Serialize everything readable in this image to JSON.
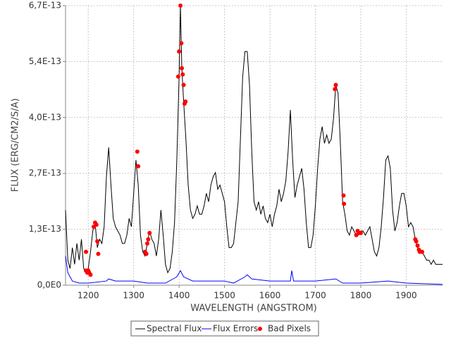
{
  "chart_data": {
    "type": "line",
    "x_label": "WAVELENGTH (ANGSTROM)",
    "y_label": "FLUX (ERG/CM2/S/A)",
    "xlim": [
      1150,
      1980
    ],
    "xticks": [
      1200,
      1300,
      1400,
      1500,
      1600,
      1700,
      1800,
      1900
    ],
    "ylim": [
      0,
      6.7e-13
    ],
    "yticks": [
      {
        "value": 0,
        "label": "0,0E0"
      },
      {
        "value": 1.34e-13,
        "label": "1,3E-13"
      },
      {
        "value": 2.68e-13,
        "label": "2,7E-13"
      },
      {
        "value": 4.02e-13,
        "label": "4,0E-13"
      },
      {
        "value": 5.36e-13,
        "label": "5,4E-13"
      },
      {
        "value": 6.7e-13,
        "label": "6,7E-13"
      }
    ],
    "grid": true,
    "legend": "bottom",
    "series": [
      {
        "name": "Spectral Flux",
        "type": "line",
        "color": "#000000",
        "x": [
          1150,
          1155,
          1160,
          1165,
          1170,
          1175,
          1180,
          1185,
          1190,
          1195,
          1200,
          1205,
          1210,
          1215,
          1220,
          1225,
          1230,
          1235,
          1240,
          1245,
          1250,
          1255,
          1260,
          1265,
          1270,
          1275,
          1280,
          1285,
          1290,
          1295,
          1300,
          1305,
          1310,
          1315,
          1320,
          1325,
          1330,
          1335,
          1340,
          1345,
          1350,
          1355,
          1360,
          1365,
          1370,
          1375,
          1380,
          1385,
          1390,
          1395,
          1400,
          1403,
          1406,
          1410,
          1415,
          1420,
          1425,
          1430,
          1435,
          1440,
          1445,
          1450,
          1455,
          1460,
          1465,
          1470,
          1475,
          1480,
          1485,
          1490,
          1495,
          1500,
          1505,
          1510,
          1515,
          1520,
          1525,
          1530,
          1535,
          1540,
          1545,
          1550,
          1555,
          1560,
          1565,
          1570,
          1575,
          1580,
          1585,
          1590,
          1595,
          1600,
          1605,
          1610,
          1615,
          1620,
          1625,
          1630,
          1635,
          1640,
          1645,
          1650,
          1655,
          1660,
          1665,
          1670,
          1675,
          1680,
          1685,
          1690,
          1695,
          1700,
          1705,
          1710,
          1715,
          1720,
          1725,
          1730,
          1735,
          1740,
          1745,
          1750,
          1755,
          1760,
          1765,
          1770,
          1775,
          1780,
          1785,
          1790,
          1795,
          1800,
          1805,
          1810,
          1815,
          1820,
          1825,
          1830,
          1835,
          1840,
          1845,
          1850,
          1855,
          1860,
          1865,
          1870,
          1875,
          1880,
          1885,
          1890,
          1895,
          1900,
          1905,
          1910,
          1915,
          1920,
          1925,
          1930,
          1935,
          1940,
          1945,
          1950,
          1955,
          1960,
          1965,
          1970,
          1975,
          1980
        ],
        "values": [
          1.8e-13,
          6e-14,
          4e-14,
          9e-14,
          5e-14,
          1e-13,
          6e-14,
          1.1e-13,
          4e-14,
          3e-14,
          4e-14,
          8e-14,
          1.3e-13,
          1.5e-13,
          9e-14,
          1.1e-13,
          1e-13,
          1.4e-13,
          2.6e-13,
          3.3e-13,
          2.4e-13,
          1.6e-13,
          1.4e-13,
          1.3e-13,
          1.2e-13,
          1e-13,
          1e-13,
          1.2e-13,
          1.6e-13,
          1.4e-13,
          2.2e-13,
          3e-13,
          2.4e-13,
          1.2e-13,
          8e-14,
          7e-14,
          1e-13,
          1.3e-13,
          1.1e-13,
          1e-13,
          7e-14,
          1.1e-13,
          1.8e-13,
          1.2e-13,
          5e-14,
          3e-14,
          4e-14,
          8e-14,
          1.5e-13,
          3e-13,
          5e-13,
          6.7e-13,
          5.2e-13,
          4.4e-13,
          3.5e-13,
          2.4e-13,
          1.8e-13,
          1.6e-13,
          1.7e-13,
          1.9e-13,
          1.7e-13,
          1.7e-13,
          1.9e-13,
          2.2e-13,
          2e-13,
          2.4e-13,
          2.6e-13,
          2.7e-13,
          2.3e-13,
          2.4e-13,
          2.2e-13,
          2e-13,
          1.4e-13,
          9e-14,
          9e-14,
          1e-13,
          1.5e-13,
          2e-13,
          3.5e-13,
          5e-13,
          5.6e-13,
          5.6e-13,
          4.8e-13,
          3.2e-13,
          2e-13,
          1.8e-13,
          2e-13,
          1.7e-13,
          1.9e-13,
          1.6e-13,
          1.5e-13,
          1.7e-13,
          1.4e-13,
          1.7e-13,
          1.9e-13,
          2.3e-13,
          2e-13,
          2.2e-13,
          2.5e-13,
          3.2e-13,
          4.2e-13,
          3e-13,
          2.1e-13,
          2.4e-13,
          2.6e-13,
          2.8e-13,
          2.3e-13,
          1.5e-13,
          9e-14,
          9e-14,
          1.2e-13,
          1.9e-13,
          2.8e-13,
          3.5e-13,
          3.8e-13,
          3.4e-13,
          3.6e-13,
          3.4e-13,
          3.5e-13,
          4e-13,
          4.8e-13,
          4.6e-13,
          3.4e-13,
          2e-13,
          1.7e-13,
          1.3e-13,
          1.2e-13,
          1.4e-13,
          1.3e-13,
          1.2e-13,
          1.2e-13,
          1.3e-13,
          1.3e-13,
          1.2e-13,
          1.3e-13,
          1.4e-13,
          1.1e-13,
          8e-14,
          7e-14,
          9e-14,
          1.4e-13,
          2.1e-13,
          3e-13,
          3.1e-13,
          2.8e-13,
          1.8e-13,
          1.3e-13,
          1.5e-13,
          1.9e-13,
          2.2e-13,
          2.2e-13,
          1.9e-13,
          1.4e-13,
          1.5e-13,
          1.4e-13,
          1.1e-13,
          9e-14,
          8e-14,
          8e-14,
          7e-14,
          6e-14,
          6e-14,
          5e-14,
          6e-14,
          5e-14,
          5e-14,
          5e-14,
          5e-14
        ]
      },
      {
        "name": "Flux Errors",
        "type": "line",
        "color": "#0000ff",
        "x": [
          1150,
          1155,
          1160,
          1165,
          1180,
          1200,
          1240,
          1245,
          1260,
          1300,
          1330,
          1370,
          1395,
          1403,
          1410,
          1430,
          1500,
          1520,
          1545,
          1550,
          1560,
          1600,
          1645,
          1648,
          1652,
          1700,
          1745,
          1760,
          1800,
          1860,
          1900,
          1980
        ],
        "values": [
          7e-14,
          3e-14,
          2e-14,
          1e-14,
          5e-15,
          5e-15,
          1e-14,
          1.5e-14,
          1e-14,
          1e-14,
          5e-15,
          5e-15,
          2e-14,
          3.5e-14,
          2e-14,
          1e-14,
          1e-14,
          5e-15,
          2e-14,
          2.5e-14,
          1.5e-14,
          1e-14,
          1e-14,
          3.5e-14,
          1e-14,
          1e-14,
          1.5e-14,
          5e-15,
          5e-15,
          1e-14,
          5e-15,
          2e-15
        ]
      },
      {
        "name": "Bad Pixels",
        "type": "scatter",
        "color": "#ff0000",
        "x": [
          1195,
          1195,
          1198,
          1200,
          1202,
          1205,
          1212,
          1215,
          1218,
          1220,
          1222,
          1308,
          1310,
          1325,
          1328,
          1330,
          1332,
          1335,
          1398,
          1400,
          1403,
          1405,
          1406,
          1408,
          1410,
          1412,
          1414,
          1743,
          1745,
          1762,
          1763,
          1790,
          1793,
          1796,
          1800,
          1920,
          1922,
          1925,
          1928,
          1930,
          1935
        ],
        "values": [
          8e-14,
          3.5e-14,
          3e-14,
          3.5e-14,
          3e-14,
          2.5e-14,
          1.4e-13,
          1.5e-13,
          1.45e-13,
          1.05e-13,
          7.5e-14,
          3.2e-13,
          2.85e-13,
          8e-14,
          7.5e-14,
          1e-13,
          1.1e-13,
          1.25e-13,
          5e-13,
          5.6e-13,
          6.7e-13,
          5.8e-13,
          5.2e-13,
          5.05e-13,
          4.8e-13,
          4.35e-13,
          4.4e-13,
          4.7e-13,
          4.8e-13,
          2.15e-13,
          1.95e-13,
          1.2e-13,
          1.3e-13,
          1.25e-13,
          1.25e-13,
          1.1e-13,
          1.05e-13,
          9.5e-14,
          8.5e-14,
          8e-14,
          8e-14
        ]
      }
    ]
  }
}
